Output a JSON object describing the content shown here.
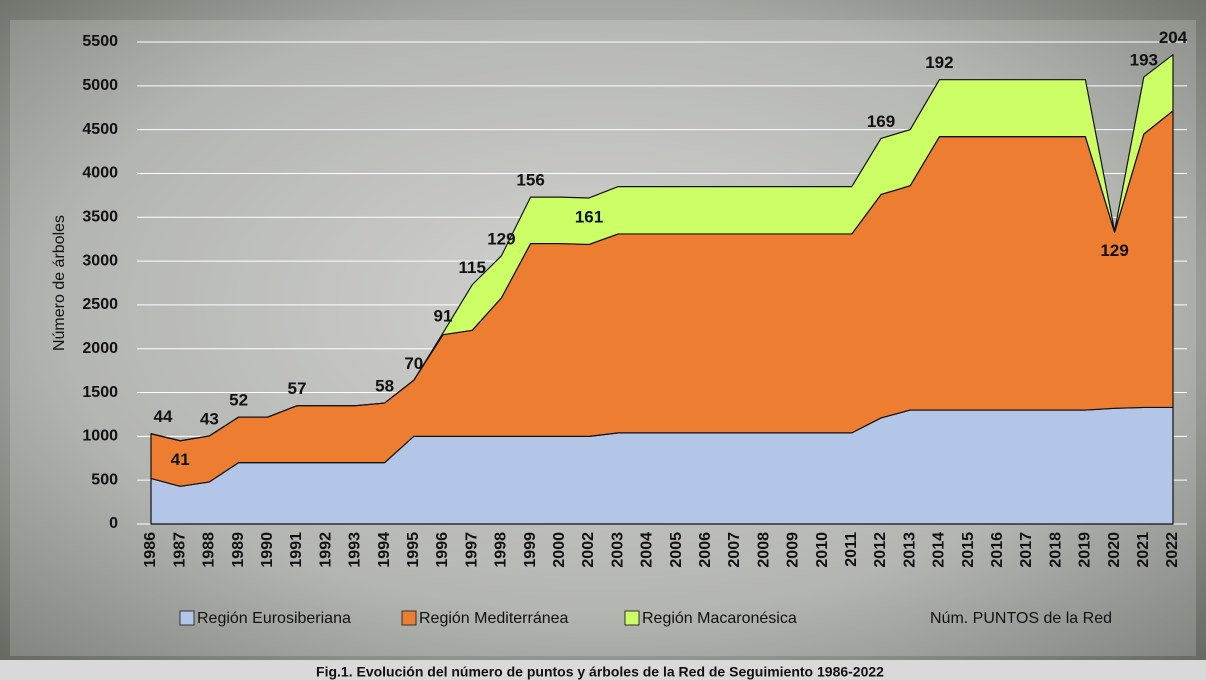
{
  "chart_data": {
    "type": "stacked-area",
    "y_label": "Número de árboles",
    "caption": "Fig.1. Evolución del número de puntos y árboles de la Red de Seguimiento 1986-2022",
    "categories": [
      "1986",
      "1987",
      "1988",
      "1989",
      "1990",
      "1991",
      "1992",
      "1993",
      "1994",
      "1995",
      "1996",
      "1997",
      "1998",
      "1999",
      "2000",
      "2002",
      "2003",
      "2004",
      "2005",
      "2006",
      "2007",
      "2008",
      "2009",
      "2010",
      "2011",
      "2012",
      "2013",
      "2014",
      "2015",
      "2016",
      "2017",
      "2018",
      "2019",
      "2020",
      "2021",
      "2022"
    ],
    "series": [
      {
        "name": "Región Eurosiberiana",
        "color": "#b4c6e7",
        "values": [
          520,
          430,
          480,
          700,
          700,
          700,
          700,
          700,
          700,
          1000,
          1000,
          1000,
          1000,
          1000,
          1000,
          1000,
          1040,
          1040,
          1040,
          1040,
          1040,
          1040,
          1040,
          1040,
          1040,
          1210,
          1300,
          1300,
          1300,
          1300,
          1300,
          1300,
          1300,
          1320,
          1330,
          1330
        ]
      },
      {
        "name": "Región Mediterránea",
        "color": "#ed7d31",
        "values": [
          510,
          520,
          525,
          520,
          520,
          650,
          650,
          650,
          680,
          640,
          1160,
          1210,
          1580,
          2200,
          2200,
          2190,
          2270,
          2270,
          2270,
          2270,
          2270,
          2270,
          2270,
          2270,
          2270,
          2550,
          2560,
          3120,
          3120,
          3120,
          3120,
          3120,
          3120,
          2010,
          3120,
          3385
        ]
      },
      {
        "name": "Región Macaronésica",
        "color": "#ccff66",
        "values": [
          0,
          0,
          0,
          0,
          0,
          0,
          0,
          0,
          0,
          0,
          20,
          520,
          480,
          530,
          530,
          530,
          540,
          540,
          540,
          540,
          540,
          540,
          540,
          540,
          540,
          640,
          640,
          650,
          650,
          650,
          650,
          650,
          650,
          10,
          650,
          640
        ]
      }
    ],
    "points_series": {
      "name": "Núm. PUNTOS de la Red",
      "values": [
        44,
        41,
        43,
        52,
        null,
        57,
        null,
        null,
        58,
        70,
        91,
        115,
        129,
        156,
        null,
        161,
        null,
        null,
        null,
        null,
        null,
        null,
        null,
        null,
        null,
        169,
        null,
        192,
        null,
        null,
        null,
        null,
        null,
        129,
        193,
        204
      ]
    },
    "ylim": [
      0,
      5500
    ],
    "yticks": [
      0,
      500,
      1000,
      1500,
      2000,
      2500,
      3000,
      3500,
      4000,
      4500,
      5000,
      5500
    ],
    "grid": true
  }
}
